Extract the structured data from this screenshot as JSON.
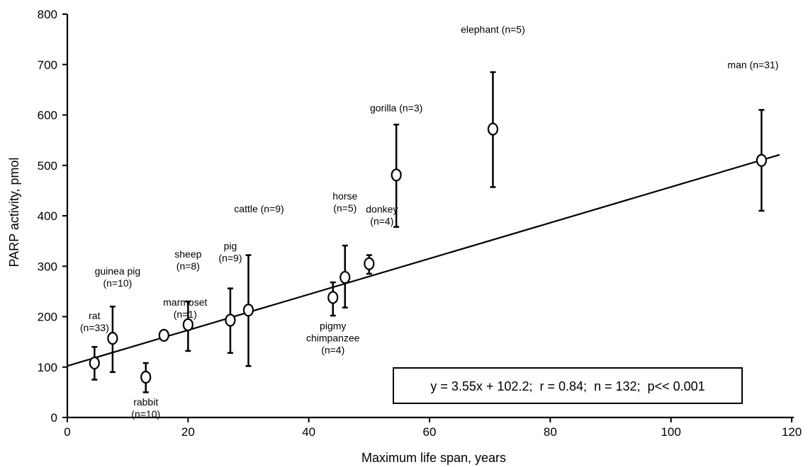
{
  "chart_data": {
    "type": "scatter",
    "title": "",
    "xlabel": "Maximum life span, years",
    "ylabel": "PARP activity, pmol",
    "xlim": [
      0,
      120
    ],
    "ylim": [
      0,
      800
    ],
    "xticks": [
      0,
      20,
      40,
      60,
      80,
      100,
      120
    ],
    "yticks": [
      0,
      100,
      200,
      300,
      400,
      500,
      600,
      700,
      800
    ],
    "grid": false,
    "points": [
      {
        "label": [
          "rat",
          "(n=33)"
        ],
        "x": 4.5,
        "y": 108,
        "err_low": 75,
        "err_high": 140
      },
      {
        "label": [
          "guinea pig",
          "(n=10)"
        ],
        "x": 7.5,
        "y": 157,
        "err_low": 90,
        "err_high": 220
      },
      {
        "label": [
          "rabbit",
          "(n=10)"
        ],
        "x": 13,
        "y": 80,
        "err_low": 50,
        "err_high": 108
      },
      {
        "label": [
          "marmoset",
          "(n=1)"
        ],
        "x": 16,
        "y": 163,
        "err_low": null,
        "err_high": null
      },
      {
        "label": [
          "sheep",
          "(n=8)"
        ],
        "x": 20,
        "y": 184,
        "err_low": 132,
        "err_high": 230
      },
      {
        "label": [
          "pig",
          "(n=9)"
        ],
        "x": 27,
        "y": 193,
        "err_low": 128,
        "err_high": 256
      },
      {
        "label": [
          "cattle (n=9)"
        ],
        "x": 30,
        "y": 213,
        "err_low": 102,
        "err_high": 322
      },
      {
        "label": [
          "pigmy",
          "chimpanzee",
          "(n=4)"
        ],
        "x": 44,
        "y": 238,
        "err_low": 202,
        "err_high": 268
      },
      {
        "label": [
          "horse",
          "(n=5)"
        ],
        "x": 46,
        "y": 278,
        "err_low": 218,
        "err_high": 341
      },
      {
        "label": [
          "donkey",
          "(n=4)"
        ],
        "x": 50,
        "y": 305,
        "err_low": 285,
        "err_high": 322
      },
      {
        "label": [
          "gorilla (n=3)"
        ],
        "x": 54.5,
        "y": 481,
        "err_low": 378,
        "err_high": 581
      },
      {
        "label": [
          "elephant (n=5)"
        ],
        "x": 70.5,
        "y": 572,
        "err_low": 457,
        "err_high": 685
      },
      {
        "label": [
          "man (n=31)"
        ],
        "x": 115,
        "y": 510,
        "err_low": 410,
        "err_high": 610
      }
    ],
    "regression": {
      "slope": 3.55,
      "intercept": 102.2,
      "x_start": 0,
      "x_end": 118
    },
    "annotation": "y = 3.55x + 102.2;  r = 0.84;  n = 132;  p<< 0.001"
  }
}
